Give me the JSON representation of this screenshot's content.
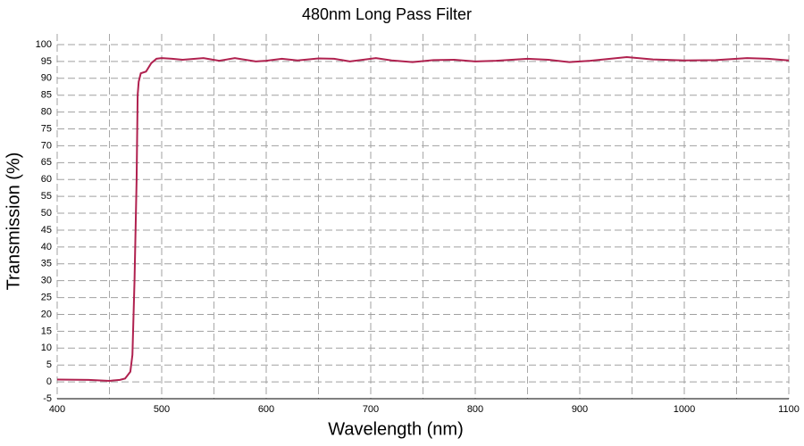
{
  "chart_data": {
    "type": "line",
    "title": "480nm Long Pass Filter",
    "xlabel": "Wavelength (nm)",
    "ylabel": "Transmission (%)",
    "x": [
      400,
      430,
      450,
      460,
      465,
      470,
      472,
      474,
      476,
      477,
      478,
      480,
      485,
      490,
      495,
      500,
      510,
      520,
      540,
      555,
      570,
      590,
      600,
      615,
      630,
      650,
      665,
      680,
      705,
      720,
      740,
      760,
      780,
      800,
      820,
      850,
      870,
      890,
      910,
      945,
      970,
      1000,
      1030,
      1060,
      1080,
      1100
    ],
    "series": [
      {
        "name": "480nm Long Pass Filter",
        "color": "#b0214f",
        "values": [
          0.7,
          0.6,
          0.3,
          0.6,
          1,
          3,
          8,
          30,
          60,
          85,
          89,
          91.5,
          92,
          94.5,
          95.8,
          96,
          95.8,
          95.5,
          96,
          95.2,
          96,
          95,
          95.2,
          95.8,
          95.3,
          95.9,
          95.8,
          95,
          96,
          95.3,
          94.8,
          95.4,
          95.5,
          95,
          95.2,
          95.8,
          95.5,
          94.8,
          95.2,
          96.3,
          95.6,
          95.3,
          95.4,
          96,
          95.8,
          95.3
        ]
      }
    ],
    "xlim": [
      400,
      1100
    ],
    "xticks": [
      400,
      500,
      600,
      700,
      800,
      900,
      1000,
      1100
    ],
    "xminorticks": [
      450,
      550,
      650,
      750,
      850,
      950,
      1050
    ],
    "ylim": [
      -5,
      100
    ],
    "yticks": [
      -5,
      0,
      5,
      10,
      15,
      20,
      25,
      30,
      35,
      40,
      45,
      50,
      55,
      60,
      65,
      70,
      75,
      80,
      85,
      90,
      95,
      100
    ],
    "grid": true
  }
}
